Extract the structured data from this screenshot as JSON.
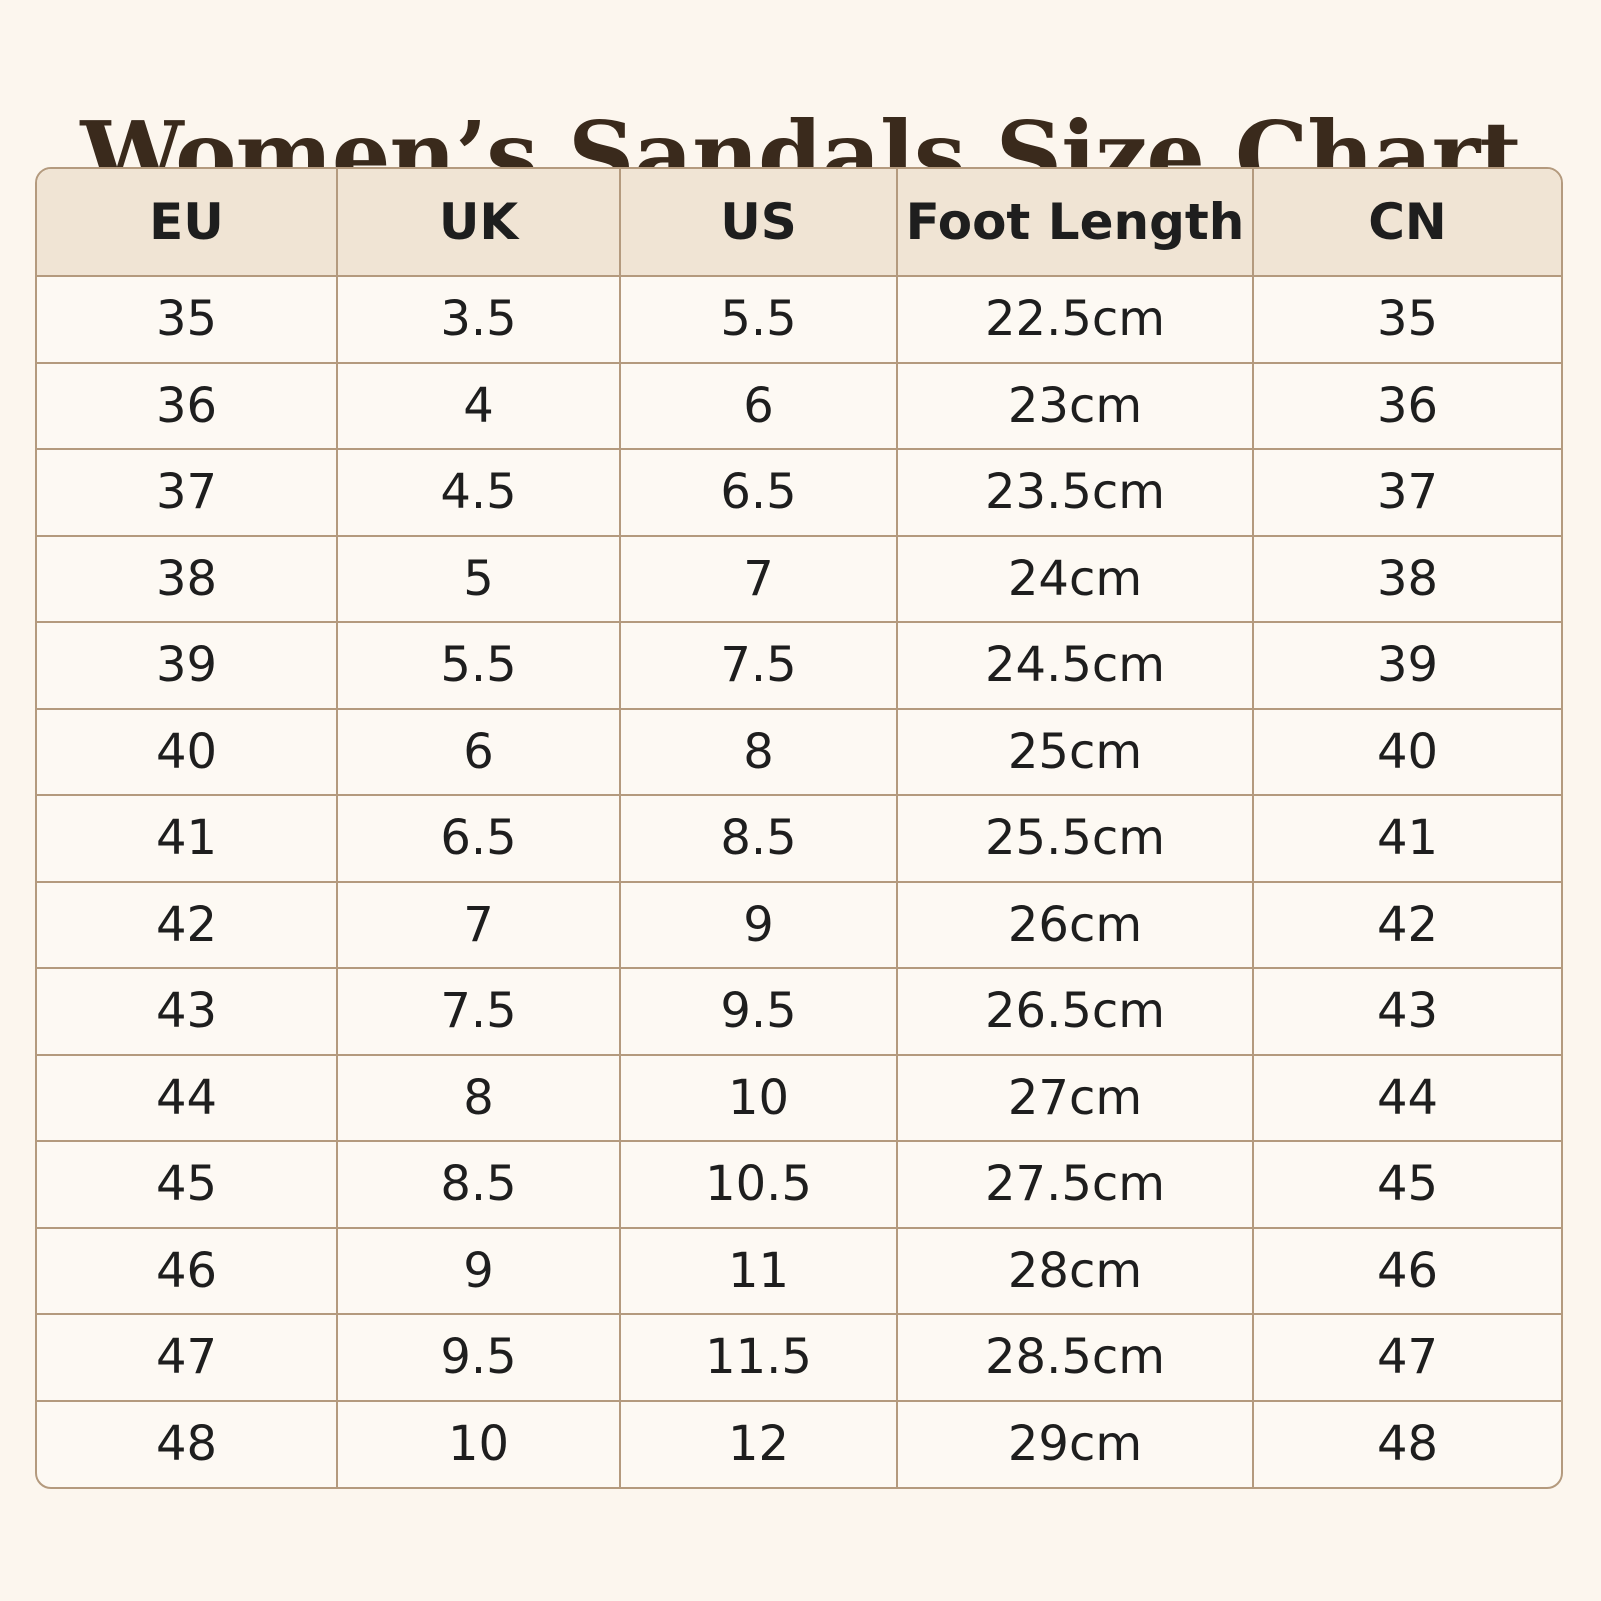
{
  "title": "Women’s Sandals Size Chart",
  "colors": {
    "background": "#fcf6ee",
    "header_background": "#f0e4d4",
    "border": "#b49a7e",
    "title_text": "#3a2a1c"
  },
  "table": {
    "columns": [
      "EU",
      "UK",
      "US",
      "Foot Length",
      "CN"
    ],
    "rows": [
      [
        "35",
        "3.5",
        "5.5",
        "22.5cm",
        "35"
      ],
      [
        "36",
        "4",
        "6",
        "23cm",
        "36"
      ],
      [
        "37",
        "4.5",
        "6.5",
        "23.5cm",
        "37"
      ],
      [
        "38",
        "5",
        "7",
        "24cm",
        "38"
      ],
      [
        "39",
        "5.5",
        "7.5",
        "24.5cm",
        "39"
      ],
      [
        "40",
        "6",
        "8",
        "25cm",
        "40"
      ],
      [
        "41",
        "6.5",
        "8.5",
        "25.5cm",
        "41"
      ],
      [
        "42",
        "7",
        "9",
        "26cm",
        "42"
      ],
      [
        "43",
        "7.5",
        "9.5",
        "26.5cm",
        "43"
      ],
      [
        "44",
        "8",
        "10",
        "27cm",
        "44"
      ],
      [
        "45",
        "8.5",
        "10.5",
        "27.5cm",
        "45"
      ],
      [
        "46",
        "9",
        "11",
        "28cm",
        "46"
      ],
      [
        "47",
        "9.5",
        "11.5",
        "28.5cm",
        "47"
      ],
      [
        "48",
        "10",
        "12",
        "29cm",
        "48"
      ]
    ]
  }
}
